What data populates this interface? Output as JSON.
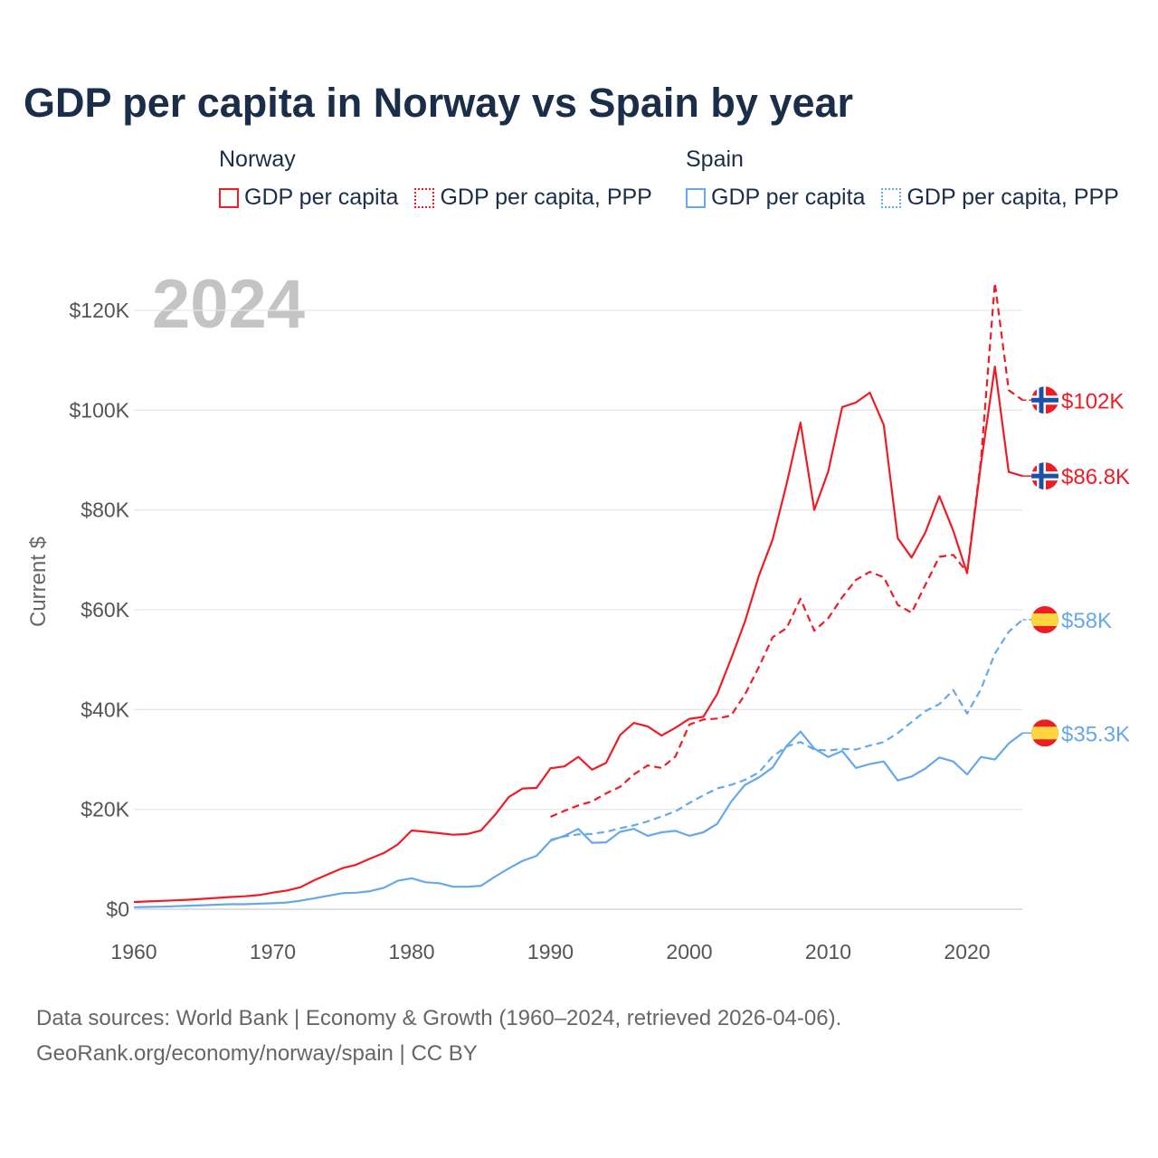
{
  "title": "GDP per capita in Norway vs Spain by year",
  "legend": {
    "groups": [
      {
        "name": "Norway",
        "items": [
          {
            "label": "GDP per capita",
            "style": "solid",
            "color": "#ee1c25"
          },
          {
            "label": "GDP per capita, PPP",
            "style": "dotted",
            "color": "#ee1c25"
          }
        ]
      },
      {
        "name": "Spain",
        "items": [
          {
            "label": "GDP per capita",
            "style": "solid",
            "color": "#66a8e8"
          },
          {
            "label": "GDP per capita, PPP",
            "style": "dotted",
            "color": "#66a8e8"
          }
        ]
      }
    ]
  },
  "footer": {
    "line1": "Data sources: World Bank | Economy & Growth (1960–2024, retrieved 2026-04-06).",
    "line2": "GeoRank.org/economy/norway/spain | CC BY"
  },
  "chart_data": {
    "type": "line",
    "title": "GDP per capita in Norway vs Spain by year",
    "ylabel": "Current $",
    "xlabel": "",
    "year_watermark": "2024",
    "xlim": [
      1960,
      2024
    ],
    "ylim": [
      0,
      125000
    ],
    "x_ticks": [
      1960,
      1970,
      1980,
      1990,
      2000,
      2010,
      2020
    ],
    "y_ticks": [
      0,
      20000,
      40000,
      60000,
      80000,
      100000,
      120000
    ],
    "y_tick_labels": [
      "$0",
      "$20K",
      "$40K",
      "$60K",
      "$80K",
      "$100K",
      "$120K"
    ],
    "grid": true,
    "series": [
      {
        "name": "Norway GDP per capita",
        "country": "Norway",
        "color": "#ee1c25",
        "dash": "solid",
        "end_label": "$86.8K",
        "flag": "norway-flag",
        "start": 1960,
        "values": [
          1.44,
          1.56,
          1.67,
          1.77,
          1.91,
          2.08,
          2.26,
          2.44,
          2.6,
          2.83,
          3.31,
          3.74,
          4.41,
          5.82,
          7.02,
          8.21,
          8.9,
          10.13,
          11.25,
          12.96,
          15.77,
          15.51,
          15.23,
          14.91,
          15.06,
          15.79,
          18.88,
          22.5,
          24.18,
          24.3,
          28.24,
          28.6,
          30.52,
          27.96,
          29.32,
          34.88,
          37.32,
          36.63,
          34.79,
          36.37,
          38.13,
          38.54,
          43.08,
          50.13,
          57.6,
          66.78,
          74.12,
          85.13,
          97.5,
          80.02,
          87.69,
          100.6,
          101.52,
          103.5,
          97.02,
          74.36,
          70.46,
          75.5,
          82.77,
          75.83,
          67.33,
          89.24,
          108.73,
          87.6,
          86.8
        ]
      },
      {
        "name": "Norway GDP per capita, PPP",
        "country": "Norway",
        "color": "#ee1c25",
        "dash": "dashed",
        "end_label": "$102K",
        "flag": "norway-flag",
        "start": 1990,
        "values": [
          18.5,
          19.7,
          20.8,
          21.6,
          23.2,
          24.5,
          27.0,
          28.8,
          28.3,
          30.6,
          37.0,
          38.0,
          38.2,
          38.8,
          43.0,
          48.5,
          54.5,
          56.3,
          62.2,
          55.8,
          58.3,
          62.5,
          66.0,
          67.6,
          66.5,
          61.0,
          59.4,
          65.0,
          70.6,
          71.0,
          67.5,
          90.0,
          125.5,
          104.0,
          102.0
        ]
      },
      {
        "name": "Spain GDP per capita",
        "country": "Spain",
        "color": "#66a8e8",
        "dash": "solid",
        "end_label": "$35.3K",
        "flag": "spain-flag",
        "start": 1960,
        "values": [
          0.4,
          0.45,
          0.5,
          0.6,
          0.7,
          0.8,
          0.9,
          1.0,
          1.0,
          1.1,
          1.2,
          1.35,
          1.7,
          2.2,
          2.7,
          3.2,
          3.3,
          3.6,
          4.3,
          5.7,
          6.2,
          5.4,
          5.2,
          4.5,
          4.5,
          4.7,
          6.5,
          8.2,
          9.7,
          10.7,
          13.7,
          14.7,
          16.1,
          13.3,
          13.4,
          15.5,
          16.1,
          14.7,
          15.4,
          15.7,
          14.7,
          15.4,
          17.1,
          21.5,
          24.9,
          26.4,
          28.4,
          32.7,
          35.6,
          32.2,
          30.5,
          31.7,
          28.3,
          29.1,
          29.6,
          25.8,
          26.6,
          28.2,
          30.4,
          29.6,
          27.0,
          30.5,
          30.0,
          33.2,
          35.3
        ]
      },
      {
        "name": "Spain GDP per capita, PPP",
        "country": "Spain",
        "color": "#66a8e8",
        "dash": "dashed",
        "end_label": "$58K",
        "flag": "spain-flag",
        "start": 1990,
        "values": [
          13.9,
          14.6,
          15.0,
          15.1,
          15.5,
          16.2,
          16.8,
          17.6,
          18.6,
          19.6,
          21.3,
          22.8,
          24.2,
          24.9,
          25.9,
          27.4,
          30.6,
          32.6,
          33.5,
          32.0,
          31.8,
          32.1,
          32.0,
          32.8,
          33.5,
          35.3,
          37.5,
          39.7,
          41.1,
          43.9,
          39.2,
          44.1,
          51.2,
          55.6,
          58.0
        ]
      }
    ],
    "values_unit": "thousand current US$"
  }
}
